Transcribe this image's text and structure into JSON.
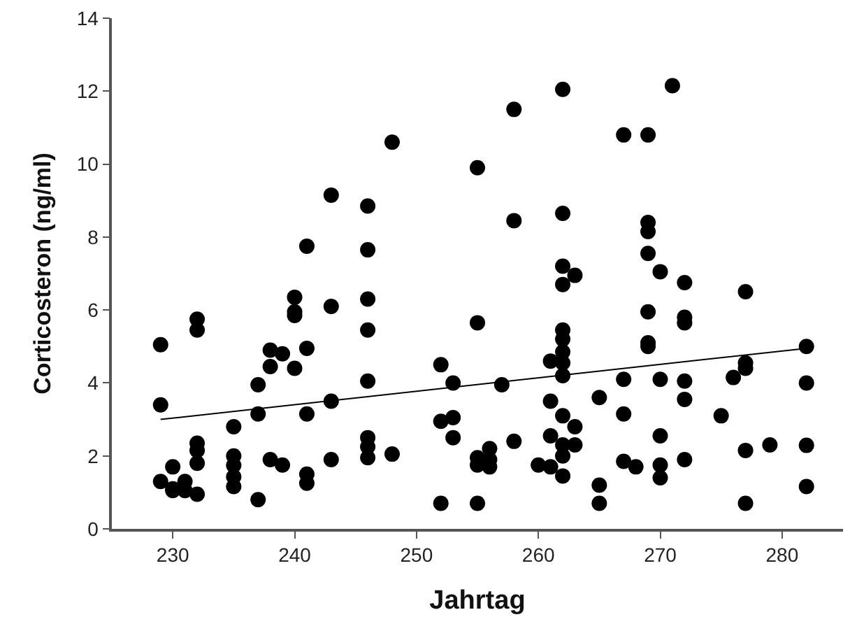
{
  "chart_data": {
    "type": "scatter",
    "xlabel": "Jahrtag",
    "ylabel": "Corticosteron (ng/ml)",
    "xlim": [
      225,
      285
    ],
    "xticks": [
      230,
      240,
      250,
      260,
      270,
      280
    ],
    "ylim": [
      0,
      14
    ],
    "yticks": [
      0,
      2,
      4,
      6,
      8,
      10,
      12,
      14
    ],
    "marker": "circle",
    "series": [
      {
        "color": "#000000",
        "x": [
          229,
          229,
          229,
          230,
          230,
          230,
          231,
          231,
          232,
          232,
          232,
          232,
          232,
          232,
          235,
          235,
          235,
          235,
          235,
          237,
          237,
          237,
          238,
          238,
          238,
          239,
          239,
          240,
          240,
          240,
          240,
          241,
          241,
          241,
          241,
          241,
          243,
          243,
          243,
          243,
          246,
          246,
          246,
          246,
          246,
          246,
          246,
          246,
          248,
          248,
          252,
          252,
          252,
          253,
          253,
          253,
          255,
          255,
          255,
          255,
          255,
          256,
          256,
          256,
          257,
          258,
          258,
          258,
          260,
          261,
          261,
          261,
          261,
          262,
          262,
          262,
          262,
          262,
          262,
          262,
          262,
          262,
          262,
          262,
          262,
          262,
          263,
          263,
          263,
          265,
          265,
          265,
          267,
          267,
          267,
          267,
          268,
          269,
          269,
          269,
          269,
          269,
          269,
          269,
          270,
          270,
          270,
          270,
          270,
          271,
          272,
          272,
          272,
          272,
          272,
          272,
          275,
          276,
          277,
          277,
          277,
          277,
          277,
          279,
          282,
          282,
          282,
          282
        ],
        "values": [
          5.05,
          3.4,
          1.3,
          1.7,
          1.05,
          1.1,
          1.3,
          1.05,
          5.75,
          5.45,
          2.35,
          2.15,
          1.8,
          0.95,
          2.8,
          2.0,
          1.74,
          1.43,
          1.16,
          3.95,
          3.15,
          0.8,
          4.9,
          4.45,
          1.9,
          4.8,
          1.75,
          6.35,
          5.95,
          5.85,
          4.4,
          7.75,
          4.95,
          3.15,
          1.5,
          1.25,
          9.15,
          6.1,
          3.5,
          1.9,
          8.85,
          7.65,
          6.3,
          5.45,
          4.05,
          2.5,
          2.25,
          1.95,
          10.6,
          2.05,
          4.5,
          2.95,
          0.7,
          4.0,
          3.05,
          2.5,
          9.9,
          5.65,
          1.95,
          1.75,
          0.7,
          2.2,
          1.9,
          1.7,
          3.95,
          11.5,
          8.45,
          2.4,
          1.75,
          4.6,
          3.5,
          2.55,
          1.7,
          12.05,
          8.65,
          7.2,
          6.7,
          5.45,
          5.2,
          4.85,
          4.55,
          4.2,
          3.1,
          2.3,
          2.0,
          1.45,
          6.95,
          2.8,
          2.3,
          3.6,
          1.2,
          0.7,
          10.8,
          4.1,
          3.15,
          1.85,
          1.7,
          10.8,
          8.4,
          8.15,
          7.55,
          5.95,
          5.1,
          5.0,
          7.05,
          4.1,
          2.55,
          1.75,
          1.4,
          12.15,
          6.75,
          5.8,
          5.65,
          4.05,
          3.55,
          1.9,
          3.1,
          4.15,
          6.5,
          4.55,
          4.4,
          2.15,
          0.7,
          2.3,
          5.0,
          4.0,
          2.29,
          1.16
        ]
      },
      {
        "color": "#000000",
        "type": "line",
        "marker": "none",
        "x": [
          229,
          282
        ],
        "values": [
          3.0,
          4.95
        ]
      }
    ]
  }
}
